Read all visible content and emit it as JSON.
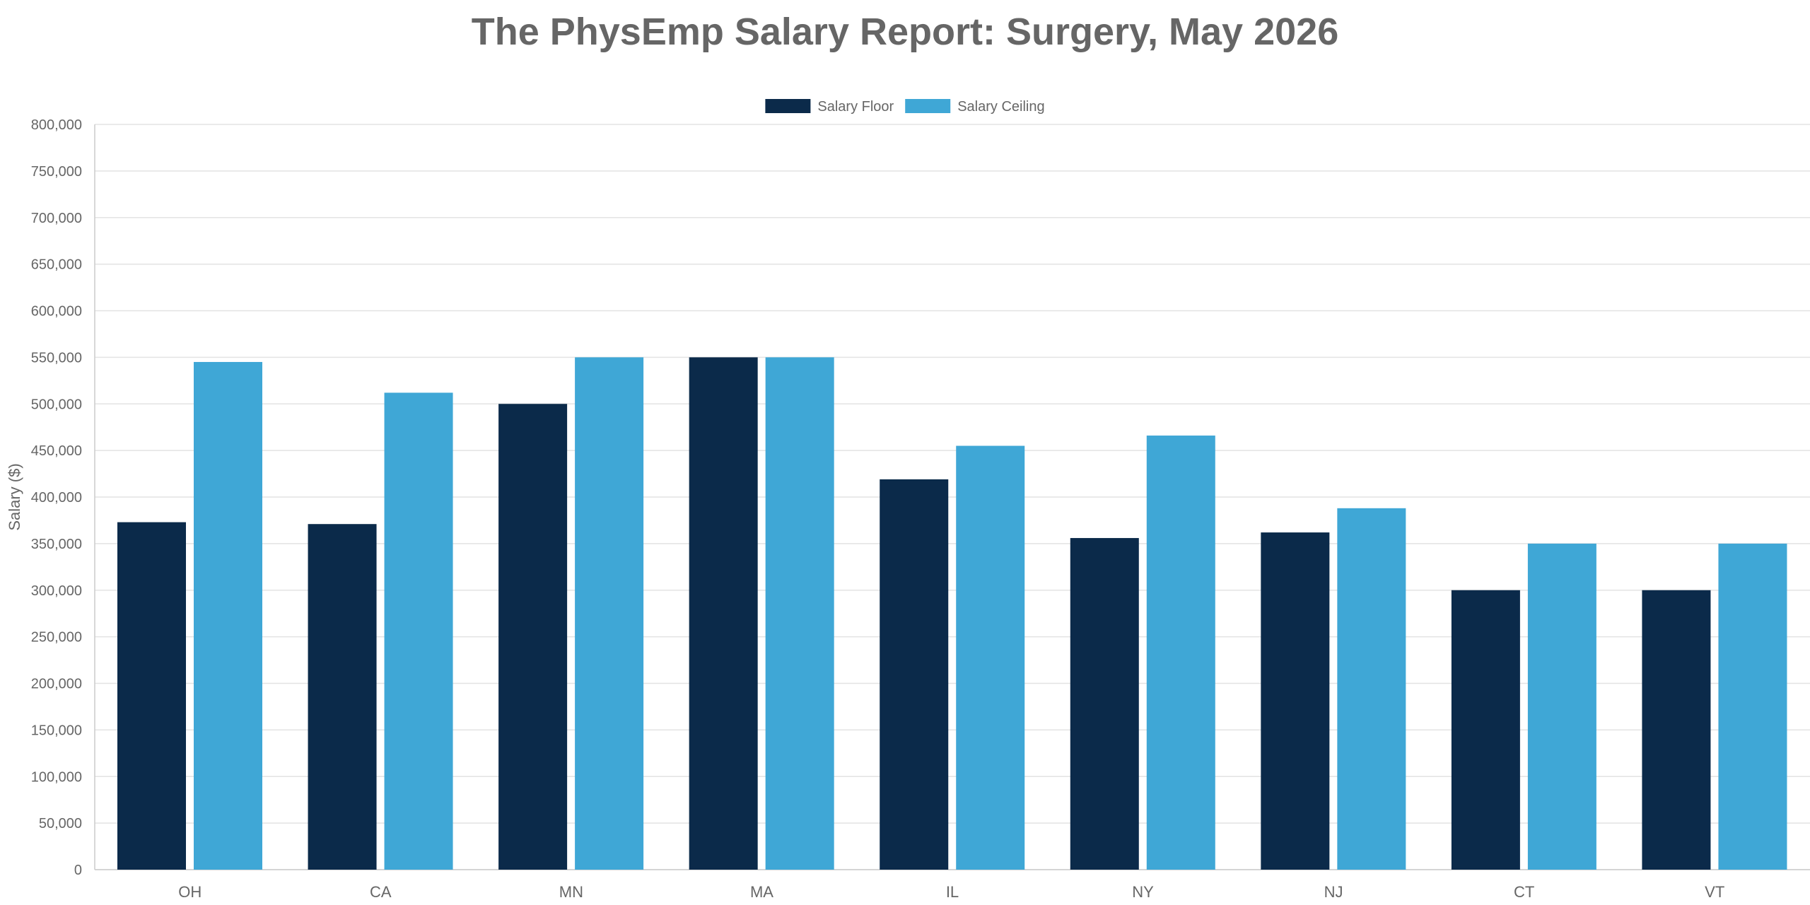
{
  "chart_data": {
    "type": "bar",
    "title": "The PhysEmp Salary Report: Surgery, May 2026",
    "xlabel": "",
    "ylabel": "Salary ($)",
    "ylim": [
      0,
      800000
    ],
    "yticks": [
      0,
      50000,
      100000,
      150000,
      200000,
      250000,
      300000,
      350000,
      400000,
      450000,
      500000,
      550000,
      600000,
      650000,
      700000,
      750000,
      800000
    ],
    "ytick_labels": [
      "0",
      "50,000",
      "100,000",
      "150,000",
      "200,000",
      "250,000",
      "300,000",
      "350,000",
      "400,000",
      "450,000",
      "500,000",
      "550,000",
      "600,000",
      "650,000",
      "700,000",
      "750,000",
      "800,000"
    ],
    "categories": [
      "OH",
      "CA",
      "MN",
      "MA",
      "IL",
      "NY",
      "NJ",
      "CT",
      "VT"
    ],
    "series": [
      {
        "name": "Salary Floor",
        "color": "#0b2a4a",
        "values": [
          373000,
          371000,
          500000,
          550000,
          419000,
          356000,
          362000,
          300000,
          300000
        ]
      },
      {
        "name": "Salary Ceiling",
        "color": "#3fa7d6",
        "values": [
          545000,
          512000,
          550000,
          550000,
          455000,
          466000,
          388000,
          350000,
          350000
        ]
      }
    ],
    "grid": true,
    "legend_position": "top-center"
  }
}
